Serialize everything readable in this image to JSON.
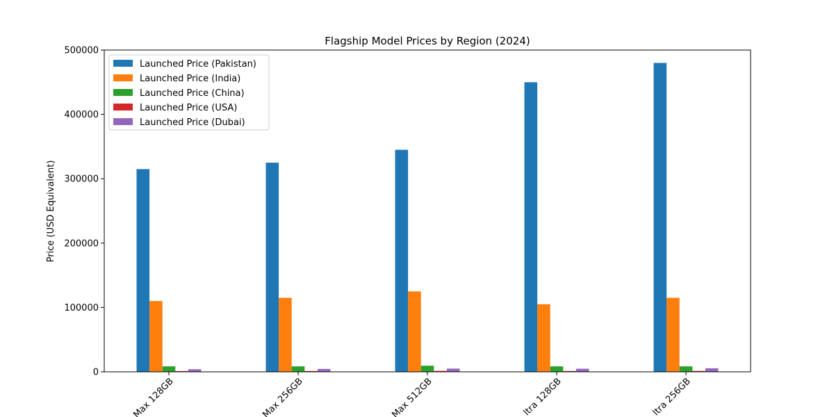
{
  "chart_data": {
    "type": "bar",
    "title": "Flagship Model Prices by Region (2024)",
    "xlabel": "",
    "ylabel": "Price (USD Equivalent)",
    "ylim": [
      0,
      500000
    ],
    "yticks": [
      0,
      100000,
      200000,
      300000,
      400000,
      500000
    ],
    "y_tick_labels": [
      "0",
      "100000",
      "200000",
      "300000",
      "400000",
      "500000"
    ],
    "categories": [
      "Max 128GB",
      "Max 256GB",
      "Max 512GB",
      "ltra 128GB",
      "ltra 256GB"
    ],
    "series": [
      {
        "name": "Launched Price (Pakistan)",
        "color": "#1f77b4",
        "values": [
          315000,
          325000,
          345000,
          450000,
          480000
        ]
      },
      {
        "name": "Launched Price (India)",
        "color": "#ff7f0e",
        "values": [
          110000,
          115000,
          125000,
          105000,
          115000
        ]
      },
      {
        "name": "Launched Price (China)",
        "color": "#2ca02c",
        "values": [
          8500,
          8500,
          9500,
          8500,
          8500
        ]
      },
      {
        "name": "Launched Price (USA)",
        "color": "#d62728",
        "values": [
          1200,
          1300,
          1500,
          1300,
          1400
        ]
      },
      {
        "name": "Launched Price (Dubai)",
        "color": "#9467bd",
        "values": [
          4000,
          4500,
          5000,
          4800,
          5500
        ]
      }
    ],
    "grid": false,
    "legend_position": "top-left",
    "x_tick_rotation": 45
  }
}
